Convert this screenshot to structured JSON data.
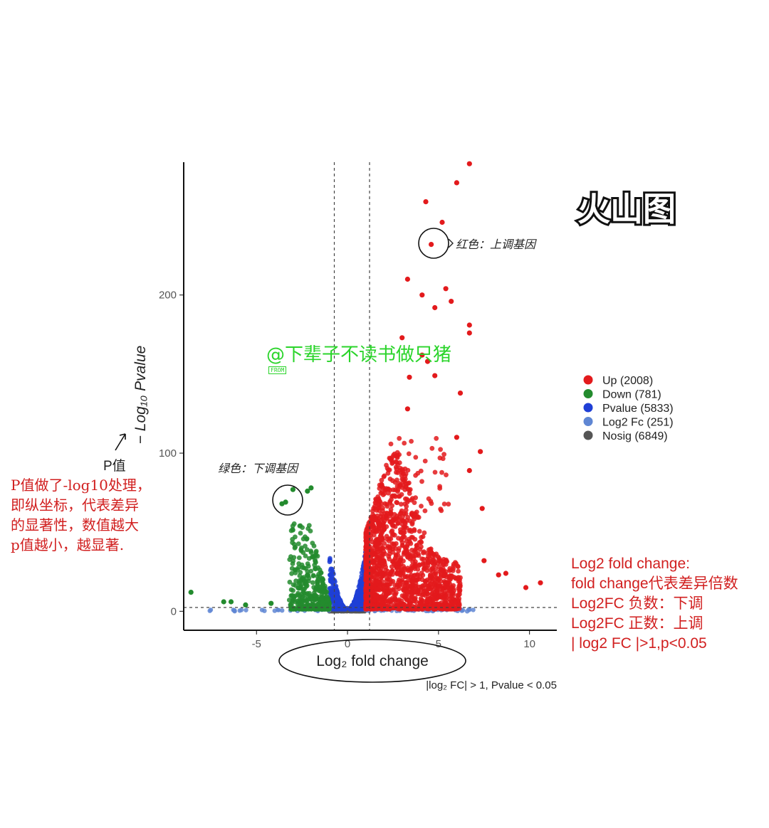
{
  "chart_data": {
    "type": "scatter",
    "title": "火山图",
    "xlabel": "Log₂ fold change",
    "ylabel": "− Log₁₀ Pvalue",
    "xlim": [
      -9,
      11.5
    ],
    "ylim": [
      -12,
      284
    ],
    "x_ticks": [
      -5,
      0,
      5,
      10
    ],
    "y_ticks": [
      0,
      100,
      200
    ],
    "thresholds": {
      "log2fc": [
        -1,
        1
      ],
      "neglog10p": 1.3
    },
    "caption": "|log₂ FC| > 1, Pvalue < 0.05",
    "legend_position": "right",
    "groups": [
      {
        "key": "up",
        "label": "Up (2008)",
        "color": "#e31a1c"
      },
      {
        "key": "down",
        "label": "Down (781)",
        "color": "#238b2e"
      },
      {
        "key": "pvalue",
        "label": "Pvalue (5833)",
        "color": "#1f3fd6"
      },
      {
        "key": "log2fc",
        "label": "Log2 Fc (251)",
        "color": "#5f86d3"
      },
      {
        "key": "nosig",
        "label": "Nosig (6849)",
        "color": "#555555"
      }
    ],
    "highlight_points": [
      {
        "group": "up",
        "x": 6.7,
        "y": 283
      },
      {
        "group": "up",
        "x": 6.0,
        "y": 271
      },
      {
        "group": "up",
        "x": 4.3,
        "y": 259
      },
      {
        "group": "up",
        "x": 5.2,
        "y": 246
      },
      {
        "group": "up",
        "x": 4.6,
        "y": 232
      },
      {
        "group": "up",
        "x": 3.3,
        "y": 210
      },
      {
        "group": "up",
        "x": 5.4,
        "y": 204
      },
      {
        "group": "up",
        "x": 4.1,
        "y": 200
      },
      {
        "group": "up",
        "x": 5.7,
        "y": 196
      },
      {
        "group": "up",
        "x": 4.8,
        "y": 192
      },
      {
        "group": "up",
        "x": 6.7,
        "y": 181
      },
      {
        "group": "up",
        "x": 6.7,
        "y": 176
      },
      {
        "group": "up",
        "x": 3.0,
        "y": 173
      },
      {
        "group": "up",
        "x": 4.1,
        "y": 162
      },
      {
        "group": "up",
        "x": 4.4,
        "y": 158
      },
      {
        "group": "up",
        "x": 3.4,
        "y": 148
      },
      {
        "group": "up",
        "x": 4.8,
        "y": 149
      },
      {
        "group": "up",
        "x": 6.2,
        "y": 138
      },
      {
        "group": "up",
        "x": 3.3,
        "y": 128
      },
      {
        "group": "up",
        "x": 7.3,
        "y": 101
      },
      {
        "group": "up",
        "x": 6.0,
        "y": 110
      },
      {
        "group": "up",
        "x": 6.7,
        "y": 89
      },
      {
        "group": "up",
        "x": 7.4,
        "y": 65
      },
      {
        "group": "up",
        "x": 10.6,
        "y": 18
      },
      {
        "group": "up",
        "x": 9.8,
        "y": 15
      },
      {
        "group": "up",
        "x": 8.7,
        "y": 24
      },
      {
        "group": "up",
        "x": 8.3,
        "y": 23
      },
      {
        "group": "up",
        "x": 7.5,
        "y": 32
      },
      {
        "group": "down",
        "x": -3.0,
        "y": 77
      },
      {
        "group": "down",
        "x": -2.0,
        "y": 78
      },
      {
        "group": "down",
        "x": -2.2,
        "y": 76
      },
      {
        "group": "down",
        "x": -3.6,
        "y": 68
      },
      {
        "group": "down",
        "x": -3.4,
        "y": 69
      },
      {
        "group": "down",
        "x": -8.6,
        "y": 12
      },
      {
        "group": "down",
        "x": -6.8,
        "y": 6
      },
      {
        "group": "down",
        "x": -6.4,
        "y": 6
      },
      {
        "group": "down",
        "x": -5.6,
        "y": 4
      },
      {
        "group": "down",
        "x": -4.2,
        "y": 5
      }
    ]
  }
}
